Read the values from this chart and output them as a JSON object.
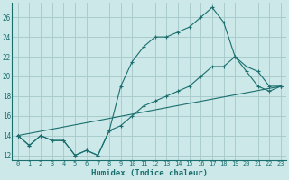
{
  "xlabel": "Humidex (Indice chaleur)",
  "ylabel": "",
  "bg_color": "#cce8e8",
  "grid_color": "#aacccc",
  "line_color": "#1a6e6e",
  "xlim": [
    -0.5,
    23.5
  ],
  "ylim": [
    11.5,
    27.5
  ],
  "xticks": [
    0,
    1,
    2,
    3,
    4,
    5,
    6,
    7,
    8,
    9,
    10,
    11,
    12,
    13,
    14,
    15,
    16,
    17,
    18,
    19,
    20,
    21,
    22,
    23
  ],
  "yticks": [
    12,
    14,
    16,
    18,
    20,
    22,
    24,
    26
  ],
  "line1_x": [
    0,
    1,
    2,
    3,
    4,
    5,
    6,
    7,
    8,
    9,
    10,
    11,
    12,
    13,
    14,
    15,
    16,
    17,
    18,
    19,
    20,
    21,
    22,
    23
  ],
  "line1_y": [
    14,
    13,
    14,
    13.5,
    13.5,
    12,
    12.5,
    12,
    14.5,
    19,
    21.5,
    23,
    24,
    24,
    24.5,
    25,
    26,
    27,
    25.5,
    22,
    20.5,
    19,
    18.5,
    19
  ],
  "line2_x": [
    0,
    1,
    2,
    3,
    4,
    5,
    6,
    7,
    8,
    9,
    10,
    11,
    12,
    13,
    14,
    15,
    16,
    17,
    18,
    19,
    20,
    21,
    22,
    23
  ],
  "line2_y": [
    14,
    13,
    14,
    13.5,
    13.5,
    12,
    12.5,
    12,
    14.5,
    15,
    16,
    17,
    17.5,
    18,
    18.5,
    19,
    20,
    21,
    21,
    22,
    21,
    20.5,
    19,
    19
  ],
  "line3_x": [
    0,
    23
  ],
  "line3_y": [
    14,
    19
  ]
}
